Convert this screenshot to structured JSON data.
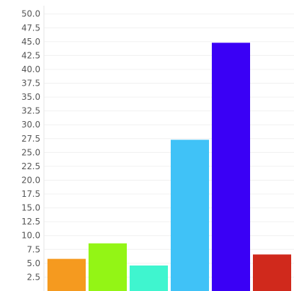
{
  "chart_data": {
    "type": "bar",
    "title": "",
    "xlabel": "",
    "ylabel": "",
    "ylim": [
      0,
      51.5
    ],
    "yticks": [
      "2.5",
      "5.0",
      "7.5",
      "10.0",
      "12.5",
      "15.0",
      "17.5",
      "20.0",
      "22.5",
      "25.0",
      "27.5",
      "30.0",
      "32.5",
      "35.0",
      "37.5",
      "40.0",
      "42.5",
      "45.0",
      "47.5",
      "50.0"
    ],
    "grid": true,
    "legend": "none",
    "values": [
      5.8,
      8.6,
      4.6,
      27.3,
      44.8,
      6.6
    ],
    "colors": [
      "#f59a1f",
      "#93f515",
      "#3ff5cf",
      "#40c2f7",
      "#3a00f5",
      "#d0291c"
    ]
  }
}
